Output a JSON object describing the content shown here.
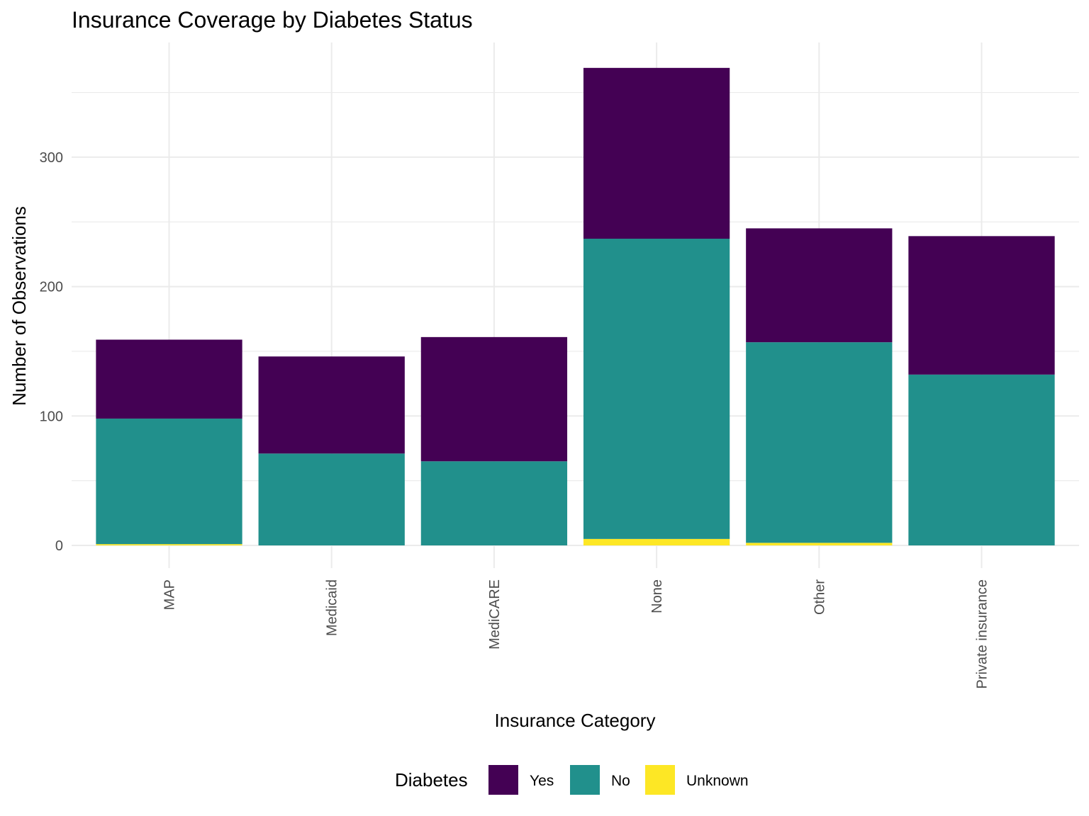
{
  "chart_data": {
    "type": "bar",
    "stacked": true,
    "title": "Insurance Coverage by Diabetes Status",
    "xlabel": "Insurance Category",
    "ylabel": "Number of Observations",
    "categories": [
      "MAP",
      "Medicaid",
      "MediCARE",
      "None",
      "Other",
      "Private insurance"
    ],
    "series": [
      {
        "name": "Unknown",
        "color": "#fde725",
        "values": [
          1,
          0,
          0,
          5,
          2,
          0
        ]
      },
      {
        "name": "No",
        "color": "#21908c",
        "values": [
          97,
          71,
          65,
          232,
          155,
          132
        ]
      },
      {
        "name": "Yes",
        "color": "#440154",
        "values": [
          61,
          75,
          96,
          132,
          88,
          107
        ]
      }
    ],
    "ylim": [
      0,
      380
    ],
    "yticks": [
      0,
      100,
      200,
      300
    ],
    "grid": true,
    "legend": {
      "title": "Diabetes",
      "position": "bottom",
      "order": [
        "Yes",
        "No",
        "Unknown"
      ]
    }
  }
}
